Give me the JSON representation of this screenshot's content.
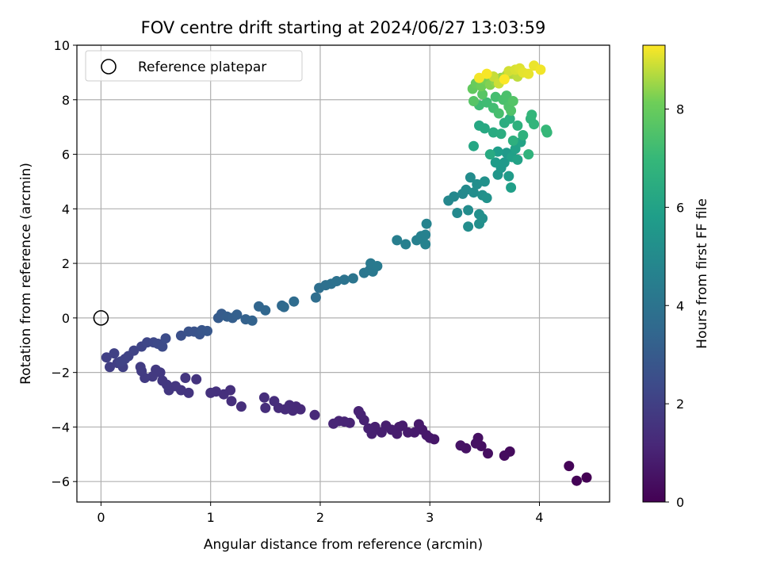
{
  "chart_data": {
    "type": "scatter",
    "title": "FOV centre drift starting at 2024/06/27 13:03:59",
    "xlabel": "Angular distance from reference (arcmin)",
    "ylabel": "Rotation from reference (arcmin)",
    "xlim": [
      -0.22,
      4.64
    ],
    "ylim": [
      -6.75,
      10
    ],
    "xticks": [
      0,
      1,
      2,
      3,
      4
    ],
    "yticks": [
      -6,
      -4,
      -2,
      0,
      2,
      4,
      6,
      8,
      10
    ],
    "grid": true,
    "legend": {
      "placement": "top-left",
      "entries": [
        "Reference platepar"
      ]
    },
    "reference_point": {
      "x": 0,
      "y": 0,
      "label": "Reference platepar"
    },
    "colorbar": {
      "label": "Hours from first FF file",
      "colormap": "viridis",
      "range": [
        0,
        9.3
      ],
      "ticks": [
        0,
        2,
        4,
        6,
        8
      ]
    },
    "series": [
      {
        "columns": [
          "x",
          "y",
          "hours"
        ],
        "points": [
          [
            4.43,
            -5.85,
            0.0
          ],
          [
            4.34,
            -5.97,
            0.05
          ],
          [
            4.27,
            -5.43,
            0.1
          ],
          [
            3.73,
            -4.9,
            0.3
          ],
          [
            3.68,
            -5.05,
            0.33
          ],
          [
            3.53,
            -4.97,
            0.38
          ],
          [
            3.47,
            -4.7,
            0.42
          ],
          [
            3.44,
            -4.4,
            0.45
          ],
          [
            3.42,
            -4.6,
            0.48
          ],
          [
            3.33,
            -4.78,
            0.52
          ],
          [
            3.28,
            -4.68,
            0.55
          ],
          [
            3.04,
            -4.45,
            0.65
          ],
          [
            3.0,
            -4.4,
            0.68
          ],
          [
            2.97,
            -4.3,
            0.7
          ],
          [
            2.93,
            -4.1,
            0.72
          ],
          [
            2.9,
            -3.9,
            0.74
          ],
          [
            2.86,
            -4.2,
            0.76
          ],
          [
            2.8,
            -4.2,
            0.78
          ],
          [
            2.75,
            -3.95,
            0.8
          ],
          [
            2.72,
            -4.0,
            0.82
          ],
          [
            2.7,
            -4.25,
            0.84
          ],
          [
            2.65,
            -4.1,
            0.86
          ],
          [
            2.6,
            -3.95,
            0.88
          ],
          [
            2.56,
            -4.2,
            0.9
          ],
          [
            2.5,
            -4.0,
            0.92
          ],
          [
            2.47,
            -4.25,
            0.94
          ],
          [
            2.44,
            -4.05,
            0.96
          ],
          [
            2.4,
            -3.75,
            0.98
          ],
          [
            2.37,
            -3.55,
            1.0
          ],
          [
            2.35,
            -3.42,
            1.02
          ],
          [
            2.27,
            -3.85,
            1.04
          ],
          [
            2.22,
            -3.8,
            1.06
          ],
          [
            2.17,
            -3.78,
            1.08
          ],
          [
            2.12,
            -3.88,
            1.1
          ],
          [
            1.95,
            -3.56,
            1.2
          ],
          [
            1.82,
            -3.35,
            1.22
          ],
          [
            1.78,
            -3.25,
            1.24
          ],
          [
            1.75,
            -3.4,
            1.26
          ],
          [
            1.72,
            -3.2,
            1.28
          ],
          [
            1.68,
            -3.35,
            1.3
          ],
          [
            1.62,
            -3.3,
            1.32
          ],
          [
            1.58,
            -3.05,
            1.34
          ],
          [
            1.5,
            -3.3,
            1.36
          ],
          [
            1.49,
            -2.92,
            1.38
          ],
          [
            1.28,
            -3.25,
            1.4
          ],
          [
            1.19,
            -3.05,
            1.42
          ],
          [
            1.18,
            -2.65,
            1.44
          ],
          [
            1.12,
            -2.8,
            1.46
          ],
          [
            1.05,
            -2.7,
            1.48
          ],
          [
            1.0,
            -2.75,
            1.5
          ],
          [
            0.87,
            -2.25,
            1.6
          ],
          [
            0.8,
            -2.75,
            1.62
          ],
          [
            0.77,
            -2.2,
            1.64
          ],
          [
            0.73,
            -2.65,
            1.66
          ],
          [
            0.68,
            -2.5,
            1.68
          ],
          [
            0.62,
            -2.65,
            1.7
          ],
          [
            0.6,
            -2.45,
            1.72
          ],
          [
            0.56,
            -2.3,
            1.74
          ],
          [
            0.54,
            -2.0,
            1.76
          ],
          [
            0.5,
            -1.9,
            1.78
          ],
          [
            0.47,
            -2.15,
            1.8
          ],
          [
            0.4,
            -2.2,
            1.82
          ],
          [
            0.37,
            -1.95,
            1.84
          ],
          [
            0.36,
            -1.8,
            1.86
          ],
          [
            0.08,
            -1.8,
            1.95
          ],
          [
            0.15,
            -1.65,
            1.98
          ],
          [
            0.2,
            -1.8,
            2.0
          ],
          [
            0.05,
            -1.45,
            2.02
          ],
          [
            0.12,
            -1.3,
            2.05
          ],
          [
            0.22,
            -1.5,
            2.08
          ],
          [
            0.25,
            -1.4,
            2.1
          ],
          [
            0.18,
            -1.6,
            2.12
          ],
          [
            0.3,
            -1.2,
            2.15
          ],
          [
            0.37,
            -1.05,
            2.2
          ],
          [
            0.42,
            -0.9,
            2.25
          ],
          [
            0.48,
            -0.9,
            2.3
          ],
          [
            0.52,
            -0.95,
            2.35
          ],
          [
            0.56,
            -1.05,
            2.4
          ],
          [
            0.59,
            -0.75,
            2.45
          ],
          [
            0.73,
            -0.65,
            2.6
          ],
          [
            0.8,
            -0.5,
            2.65
          ],
          [
            0.85,
            -0.5,
            2.7
          ],
          [
            0.9,
            -0.6,
            2.75
          ],
          [
            0.92,
            -0.45,
            2.8
          ],
          [
            0.97,
            -0.48,
            2.85
          ],
          [
            1.07,
            0.0,
            3.0
          ],
          [
            1.1,
            0.15,
            3.05
          ],
          [
            1.15,
            0.05,
            3.1
          ],
          [
            1.2,
            0.0,
            3.15
          ],
          [
            1.24,
            0.12,
            3.2
          ],
          [
            1.32,
            -0.05,
            3.25
          ],
          [
            1.38,
            -0.1,
            3.3
          ],
          [
            1.44,
            0.42,
            3.4
          ],
          [
            1.5,
            0.28,
            3.45
          ],
          [
            1.65,
            0.45,
            3.55
          ],
          [
            1.67,
            0.4,
            3.6
          ],
          [
            1.76,
            0.6,
            3.65
          ],
          [
            1.96,
            0.75,
            3.75
          ],
          [
            1.99,
            1.1,
            3.8
          ],
          [
            2.05,
            1.2,
            3.85
          ],
          [
            2.1,
            1.25,
            3.9
          ],
          [
            2.15,
            1.35,
            3.95
          ],
          [
            2.22,
            1.4,
            4.0
          ],
          [
            2.3,
            1.45,
            4.05
          ],
          [
            2.4,
            1.65,
            4.1
          ],
          [
            2.45,
            1.75,
            4.15
          ],
          [
            2.48,
            1.7,
            4.2
          ],
          [
            2.46,
            2.0,
            4.25
          ],
          [
            2.52,
            1.9,
            4.3
          ],
          [
            2.7,
            2.85,
            4.45
          ],
          [
            2.78,
            2.7,
            4.5
          ],
          [
            2.88,
            2.85,
            4.55
          ],
          [
            2.92,
            3.0,
            4.6
          ],
          [
            2.96,
            3.05,
            4.62
          ],
          [
            2.96,
            2.7,
            4.65
          ],
          [
            2.97,
            3.45,
            4.7
          ],
          [
            3.17,
            4.3,
            4.85
          ],
          [
            3.22,
            4.45,
            4.9
          ],
          [
            3.25,
            3.85,
            4.92
          ],
          [
            3.3,
            4.55,
            4.95
          ],
          [
            3.33,
            4.7,
            5.0
          ],
          [
            3.37,
            5.15,
            5.05
          ],
          [
            3.35,
            3.95,
            5.08
          ],
          [
            3.35,
            3.35,
            5.1
          ],
          [
            3.4,
            4.6,
            5.12
          ],
          [
            3.43,
            4.9,
            5.15
          ],
          [
            3.45,
            3.45,
            5.18
          ],
          [
            3.45,
            3.8,
            5.2
          ],
          [
            3.48,
            3.65,
            5.22
          ],
          [
            3.48,
            4.5,
            5.25
          ],
          [
            3.5,
            5.0,
            5.28
          ],
          [
            3.52,
            4.4,
            5.3
          ],
          [
            3.62,
            5.25,
            5.5
          ],
          [
            3.65,
            5.5,
            5.55
          ],
          [
            3.68,
            5.7,
            5.6
          ],
          [
            3.7,
            6.05,
            5.65
          ],
          [
            3.72,
            5.2,
            5.7
          ],
          [
            3.6,
            5.7,
            5.75
          ],
          [
            3.62,
            6.1,
            5.8
          ],
          [
            3.74,
            4.78,
            5.85
          ],
          [
            3.75,
            5.9,
            5.9
          ],
          [
            3.78,
            6.2,
            5.95
          ],
          [
            3.8,
            5.8,
            6.0
          ],
          [
            3.83,
            6.45,
            6.05
          ],
          [
            3.4,
            6.3,
            6.2
          ],
          [
            3.45,
            7.05,
            6.25
          ],
          [
            3.5,
            6.95,
            6.3
          ],
          [
            3.55,
            6.0,
            6.35
          ],
          [
            3.58,
            6.8,
            6.4
          ],
          [
            3.65,
            6.75,
            6.45
          ],
          [
            3.68,
            7.15,
            6.5
          ],
          [
            3.73,
            7.3,
            6.55
          ],
          [
            3.76,
            6.5,
            6.6
          ],
          [
            3.8,
            7.05,
            6.65
          ],
          [
            3.85,
            6.7,
            6.7
          ],
          [
            3.9,
            6.0,
            6.75
          ],
          [
            3.92,
            7.3,
            6.8
          ],
          [
            3.95,
            7.1,
            6.85
          ],
          [
            3.93,
            7.45,
            6.9
          ],
          [
            4.07,
            6.8,
            6.95
          ],
          [
            4.06,
            6.9,
            7.0
          ],
          [
            3.45,
            7.8,
            7.15
          ],
          [
            3.52,
            7.9,
            7.2
          ],
          [
            3.58,
            7.7,
            7.25
          ],
          [
            3.6,
            8.1,
            7.3
          ],
          [
            3.63,
            7.5,
            7.35
          ],
          [
            3.67,
            8.0,
            7.4
          ],
          [
            3.7,
            8.15,
            7.45
          ],
          [
            3.72,
            7.75,
            7.5
          ],
          [
            3.74,
            7.6,
            7.55
          ],
          [
            3.76,
            7.95,
            7.6
          ],
          [
            3.4,
            7.95,
            7.65
          ],
          [
            3.48,
            8.2,
            7.7
          ],
          [
            3.39,
            8.4,
            7.9
          ],
          [
            3.42,
            8.6,
            8.0
          ],
          [
            3.47,
            8.5,
            8.1
          ],
          [
            3.5,
            8.75,
            8.2
          ],
          [
            3.55,
            8.55,
            8.3
          ],
          [
            3.6,
            8.65,
            8.4
          ],
          [
            3.65,
            8.8,
            8.5
          ],
          [
            3.7,
            8.9,
            8.6
          ],
          [
            3.75,
            8.95,
            8.7
          ],
          [
            3.8,
            8.85,
            8.8
          ],
          [
            3.58,
            8.85,
            8.85
          ],
          [
            3.63,
            8.6,
            8.9
          ],
          [
            3.72,
            9.05,
            8.95
          ],
          [
            3.78,
            9.1,
            9.0
          ],
          [
            3.82,
            9.15,
            9.05
          ],
          [
            3.85,
            9.0,
            9.1
          ],
          [
            3.9,
            8.95,
            9.12
          ],
          [
            3.95,
            9.25,
            9.15
          ],
          [
            4.01,
            9.1,
            9.2
          ],
          [
            3.45,
            8.8,
            9.22
          ],
          [
            3.52,
            8.95,
            9.25
          ],
          [
            3.68,
            8.75,
            9.28
          ]
        ]
      }
    ]
  }
}
